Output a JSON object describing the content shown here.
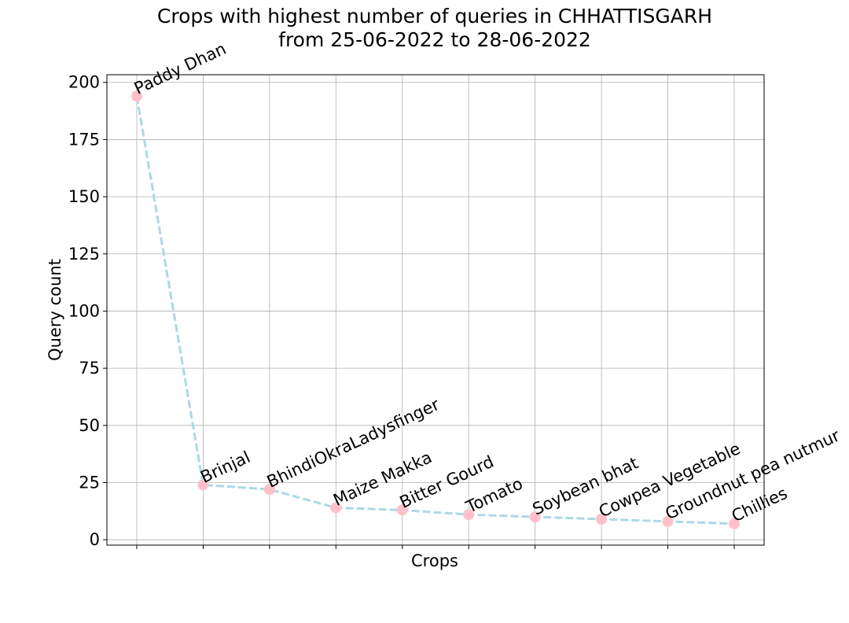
{
  "chart_data": {
    "type": "line",
    "title_line1": "Crops with highest number of queries in CHHATTISGARH",
    "title_line2": "from 25-06-2022 to 28-06-2022",
    "xlabel": "Crops",
    "ylabel": "Query count",
    "categories": [
      "Paddy Dhan",
      "Brinjal",
      "BhindiOkraLadysfinger",
      "Maize Makka",
      "Bitter Gourd",
      "Tomato",
      "Soybean bhat",
      "Cowpea Vegetable",
      "Groundnut pea nutmur",
      "Chillies"
    ],
    "values": [
      194,
      24,
      22,
      14,
      13,
      11,
      10,
      9,
      8,
      7
    ],
    "yticks": [
      0,
      25,
      50,
      75,
      100,
      125,
      150,
      175,
      200
    ],
    "ylim": [
      -2.35,
      203.35
    ],
    "grid": true,
    "line_style": "dashed",
    "colors": {
      "line": "#add8e6",
      "marker": "#ffc0cb",
      "grid": "#b0b0b0",
      "axes": "#000000"
    }
  }
}
